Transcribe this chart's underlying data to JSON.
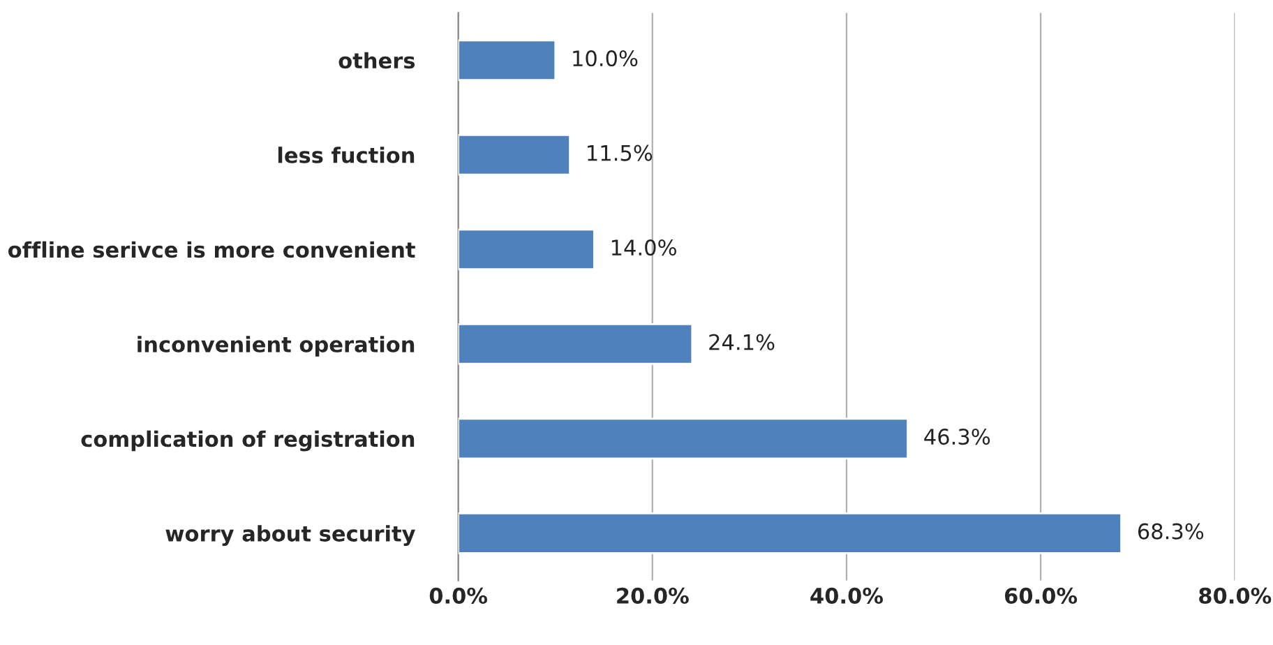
{
  "chart_data": {
    "type": "bar",
    "orientation": "horizontal",
    "categories": [
      "others",
      "less fuction",
      "offline serivce is more convenient",
      "inconvenient operation",
      "complication of registration",
      "worry about security"
    ],
    "values": [
      10.0,
      11.5,
      14.0,
      24.1,
      46.3,
      68.3
    ],
    "value_labels": [
      "10.0%",
      "11.5%",
      "14.0%",
      "24.1%",
      "46.3%",
      "68.3%"
    ],
    "color": "#4f81bd",
    "xlim": [
      0,
      80
    ],
    "xticks": [
      {
        "value": 0,
        "label": "0.0%"
      },
      {
        "value": 20,
        "label": "20.0%"
      },
      {
        "value": 40,
        "label": "40.0%"
      },
      {
        "value": 60,
        "label": "60.0%"
      },
      {
        "value": 80,
        "label": "80.0%"
      }
    ],
    "grid": "x",
    "legend": false
  }
}
